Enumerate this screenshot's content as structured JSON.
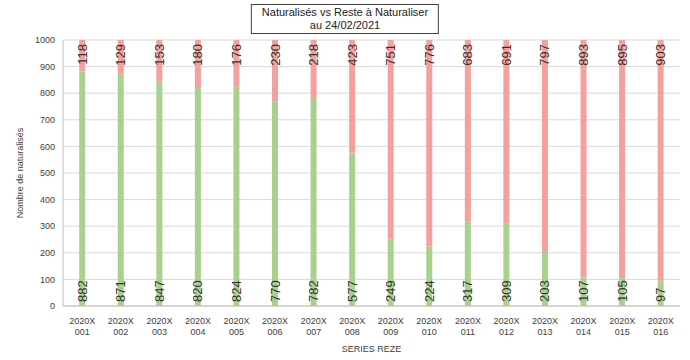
{
  "chart_data": {
    "type": "bar",
    "title": "Naturalisés vs Reste à Naturaliser",
    "subtitle": "au 24/02/2021",
    "x_label": "SERIES REZE",
    "y_label": "Nombre de naturalisés",
    "categories": [
      "2020X 001",
      "2020X 002",
      "2020X 003",
      "2020X 004",
      "2020X 005",
      "2020X 006",
      "2020X 007",
      "2020X 008",
      "2020X 009",
      "2020X 010",
      "2020X 011",
      "2020X 012",
      "2020X 013",
      "2020X 014",
      "2020X 015",
      "2020X 016"
    ],
    "series": [
      {
        "color": "#a9d18e",
        "values": [
          882,
          871,
          847,
          820,
          824,
          770,
          782,
          577,
          249,
          224,
          317,
          309,
          203,
          107,
          105,
          97
        ]
      },
      {
        "color": "#f4a09c",
        "values": [
          118,
          129,
          153,
          180,
          176,
          230,
          218,
          423,
          751,
          776,
          683,
          691,
          797,
          893,
          895,
          903
        ]
      }
    ],
    "ylim": [
      0,
      1000
    ],
    "yticks": [
      0,
      100,
      200,
      300,
      400,
      500,
      600,
      700,
      800,
      900,
      1000
    ],
    "stacked": true,
    "grid": true,
    "data_labels": true
  }
}
